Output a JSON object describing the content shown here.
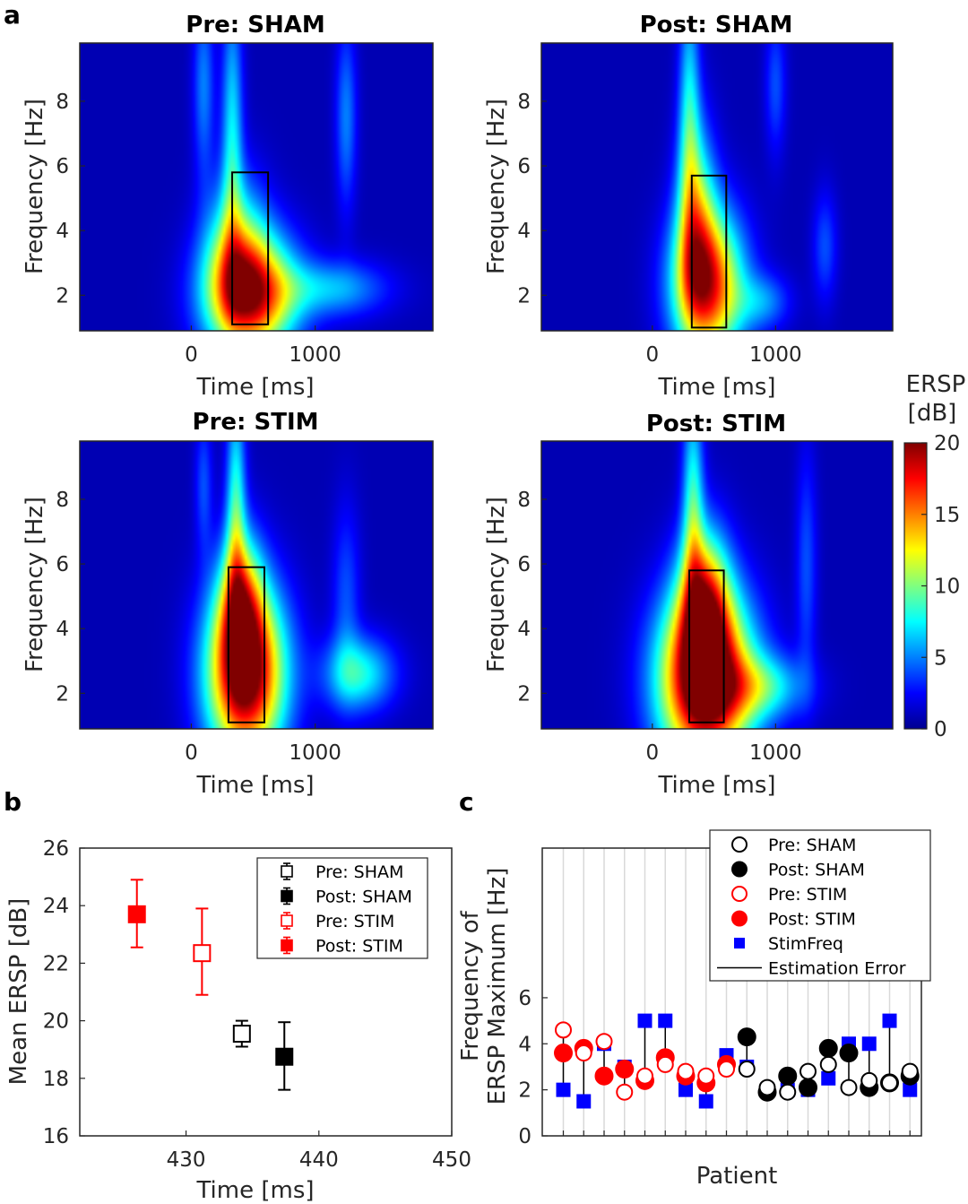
{
  "panel_labels": {
    "a": "a",
    "b": "b",
    "c": "c"
  },
  "chart_data": [
    {
      "type": "heatmap",
      "title": "Pre: SHAM",
      "xlabel": "Time [ms]",
      "ylabel": "Frequency [Hz]",
      "xlim": [
        -900,
        1950
      ],
      "ylim": [
        0.9,
        9.8
      ],
      "xticks": [
        0,
        1000
      ],
      "yticks": [
        2,
        4,
        6,
        8
      ],
      "roi": {
        "t0": 330,
        "t1": 620,
        "f0": 1.1,
        "f1": 5.8
      },
      "blobs": [
        {
          "t": 480,
          "f": 2.0,
          "st": 250,
          "sf": 1.3,
          "a": 17
        },
        {
          "t": 360,
          "f": 3.5,
          "st": 170,
          "sf": 1.6,
          "a": 7
        },
        {
          "t": 330,
          "f": 7.0,
          "st": 60,
          "sf": 3.0,
          "a": 6
        },
        {
          "t": 100,
          "f": 8.5,
          "st": 60,
          "sf": 2.0,
          "a": 4
        },
        {
          "t": 1150,
          "f": 2.2,
          "st": 300,
          "sf": 0.6,
          "a": 5
        },
        {
          "t": 1250,
          "f": 7.5,
          "st": 60,
          "sf": 2.0,
          "a": 4
        }
      ]
    },
    {
      "type": "heatmap",
      "title": "Post: SHAM",
      "xlabel": "Time [ms]",
      "ylabel": "Frequency [Hz]",
      "xlim": [
        -900,
        1950
      ],
      "ylim": [
        0.9,
        9.8
      ],
      "xticks": [
        0,
        1000
      ],
      "yticks": [
        2,
        4,
        6,
        8
      ],
      "roi": {
        "t0": 320,
        "t1": 600,
        "f0": 1.0,
        "f1": 5.7
      },
      "blobs": [
        {
          "t": 450,
          "f": 2.3,
          "st": 200,
          "sf": 1.6,
          "a": 16
        },
        {
          "t": 360,
          "f": 4.5,
          "st": 110,
          "sf": 2.0,
          "a": 8
        },
        {
          "t": 300,
          "f": 7.5,
          "st": 60,
          "sf": 3.0,
          "a": 6
        },
        {
          "t": 900,
          "f": 1.8,
          "st": 150,
          "sf": 0.6,
          "a": 4
        },
        {
          "t": 1400,
          "f": 3.5,
          "st": 70,
          "sf": 1.2,
          "a": 3
        },
        {
          "t": 1000,
          "f": 8.5,
          "st": 60,
          "sf": 1.5,
          "a": 3
        }
      ]
    },
    {
      "type": "heatmap",
      "title": "Pre: STIM",
      "xlabel": "Time [ms]",
      "ylabel": "Frequency [Hz]",
      "xlim": [
        -900,
        1950
      ],
      "ylim": [
        0.9,
        9.8
      ],
      "xticks": [
        0,
        1000
      ],
      "yticks": [
        2,
        4,
        6,
        8
      ],
      "roi": {
        "t0": 300,
        "t1": 590,
        "f0": 1.1,
        "f1": 5.9
      },
      "blobs": [
        {
          "t": 440,
          "f": 2.6,
          "st": 220,
          "sf": 1.9,
          "a": 20
        },
        {
          "t": 400,
          "f": 4.8,
          "st": 120,
          "sf": 1.5,
          "a": 10
        },
        {
          "t": 360,
          "f": 7.8,
          "st": 55,
          "sf": 2.5,
          "a": 7
        },
        {
          "t": 1350,
          "f": 2.6,
          "st": 200,
          "sf": 0.8,
          "a": 7
        },
        {
          "t": 1250,
          "f": 5.0,
          "st": 80,
          "sf": 2.0,
          "a": 3
        },
        {
          "t": 100,
          "f": 8.5,
          "st": 50,
          "sf": 1.5,
          "a": 3
        }
      ]
    },
    {
      "type": "heatmap",
      "title": "Post: STIM",
      "xlabel": "Time [ms]",
      "ylabel": "Frequency [Hz]",
      "xlim": [
        -900,
        1950
      ],
      "ylim": [
        0.9,
        9.8
      ],
      "xticks": [
        0,
        1000
      ],
      "yticks": [
        2,
        4,
        6,
        8
      ],
      "roi": {
        "t0": 300,
        "t1": 580,
        "f0": 1.1,
        "f1": 5.8
      },
      "blobs": [
        {
          "t": 430,
          "f": 2.4,
          "st": 260,
          "sf": 1.9,
          "a": 22
        },
        {
          "t": 420,
          "f": 4.8,
          "st": 140,
          "sf": 1.6,
          "a": 12
        },
        {
          "t": 330,
          "f": 7.8,
          "st": 60,
          "sf": 2.5,
          "a": 7
        },
        {
          "t": 900,
          "f": 2.2,
          "st": 250,
          "sf": 0.7,
          "a": 6
        },
        {
          "t": 1250,
          "f": 6.0,
          "st": 60,
          "sf": 2.5,
          "a": 3
        }
      ]
    },
    {
      "type": "colorbar",
      "title": "ERSP",
      "subtitle": "[dB]",
      "range": [
        0,
        20
      ],
      "ticks": [
        "0",
        "5",
        "10",
        "15",
        "20"
      ]
    },
    {
      "type": "scatter",
      "xlabel": "Time [ms]",
      "ylabel": "Mean ERSP [dB]",
      "xlim": [
        422,
        450
      ],
      "ylim": [
        16,
        26
      ],
      "xticks": [
        "430",
        "440",
        "450"
      ],
      "yticks": [
        "16",
        "18",
        "20",
        "22",
        "24",
        "26"
      ],
      "legend_position": "top-right",
      "series": [
        {
          "name": "Pre: SHAM",
          "x": 434.2,
          "y": 19.55,
          "err_lo": 19.1,
          "err_hi": 20.0,
          "color": "#000000",
          "filled": false
        },
        {
          "name": "Post: SHAM",
          "x": 437.4,
          "y": 18.75,
          "err_lo": 17.6,
          "err_hi": 19.95,
          "color": "#000000",
          "filled": true
        },
        {
          "name": "Pre: STIM",
          "x": 431.2,
          "y": 22.35,
          "err_lo": 20.9,
          "err_hi": 23.9,
          "color": "#ff0000",
          "filled": false
        },
        {
          "name": "Post: STIM",
          "x": 426.3,
          "y": 23.7,
          "err_lo": 22.55,
          "err_hi": 24.9,
          "color": "#ff0000",
          "filled": true
        }
      ]
    },
    {
      "type": "scatter",
      "xlabel": "Patient",
      "ylabel_line1": "Frequency of",
      "ylabel_line2": "ERSP Maximum [Hz]",
      "ylim": [
        0,
        12.5
      ],
      "yticks": [
        "0",
        "2",
        "4",
        "6"
      ],
      "n_patients": 18,
      "legend_position": "top-right",
      "legend": [
        "Pre: SHAM",
        "Post: SHAM",
        "Pre: STIM",
        "Post: STIM",
        "StimFreq",
        "Estimation Error"
      ],
      "patients": [
        {
          "group": "STIM",
          "pre": 4.6,
          "post": 3.6,
          "stim": 2.0
        },
        {
          "group": "STIM",
          "pre": 3.6,
          "post": 3.8,
          "stim": 1.5
        },
        {
          "group": "STIM",
          "pre": 4.1,
          "post": 2.6,
          "stim": 4.0
        },
        {
          "group": "STIM",
          "pre": 1.9,
          "post": 2.9,
          "stim": 3.0
        },
        {
          "group": "STIM",
          "pre": 2.6,
          "post": 2.4,
          "stim": 5.0
        },
        {
          "group": "STIM",
          "pre": 3.1,
          "post": 3.4,
          "stim": 5.0
        },
        {
          "group": "STIM",
          "pre": 2.8,
          "post": 2.6,
          "stim": 2.0
        },
        {
          "group": "STIM",
          "pre": 2.6,
          "post": 2.3,
          "stim": 1.5
        },
        {
          "group": "STIM",
          "pre": 2.9,
          "post": 3.1,
          "stim": 3.5
        },
        {
          "group": "SHAM",
          "pre": 2.9,
          "post": 4.3,
          "stim": 3.0
        },
        {
          "group": "SHAM",
          "pre": 2.1,
          "post": 1.9,
          "stim": 2.0
        },
        {
          "group": "SHAM",
          "pre": 1.9,
          "post": 2.6,
          "stim": 2.0
        },
        {
          "group": "SHAM",
          "pre": 2.8,
          "post": 2.1,
          "stim": 2.0
        },
        {
          "group": "SHAM",
          "pre": 3.1,
          "post": 3.8,
          "stim": 2.5
        },
        {
          "group": "SHAM",
          "pre": 2.1,
          "post": 3.6,
          "stim": 4.0
        },
        {
          "group": "SHAM",
          "pre": 2.4,
          "post": 2.1,
          "stim": 4.0
        },
        {
          "group": "SHAM",
          "pre": 2.3,
          "post": 2.3,
          "stim": 5.0
        },
        {
          "group": "SHAM",
          "pre": 2.8,
          "post": 2.6,
          "stim": 2.0
        }
      ]
    }
  ]
}
